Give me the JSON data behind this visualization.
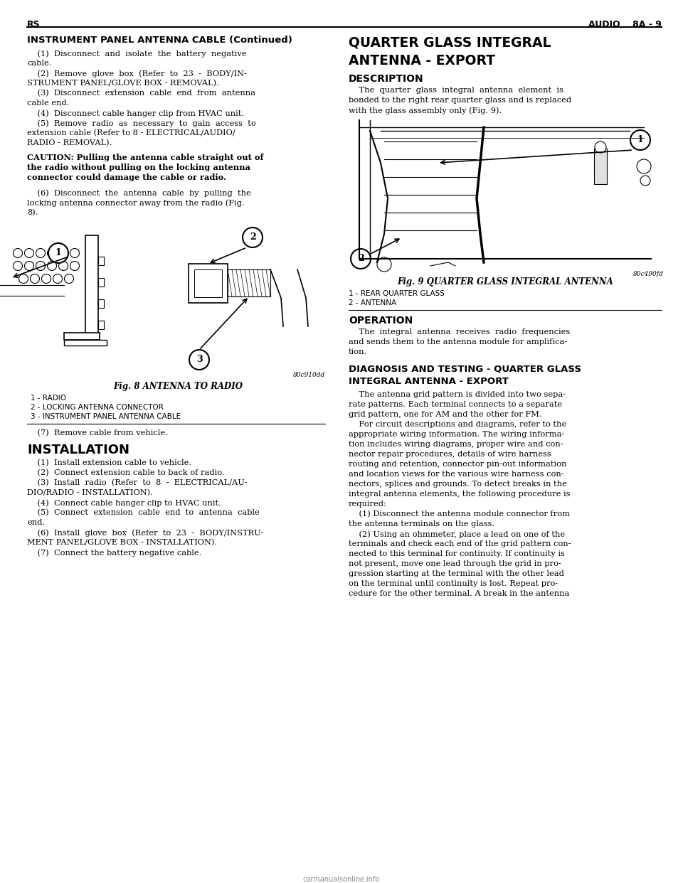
{
  "bg_color": "#ffffff",
  "page_width": 9.6,
  "page_height": 12.42,
  "dpi": 100,
  "header_left": "RS",
  "header_right": "AUDIO    8A - 9",
  "section_title_left": "INSTRUMENT PANEL ANTENNA CABLE (Continued)",
  "left_para1_lines": [
    "    (1)  Disconnect  and  isolate  the  battery  negative",
    "cable.",
    "    (2)  Remove  glove  box  (Refer  to  23  -  BODY/IN-",
    "STRUMENT PANEL/GLOVE BOX - REMOVAL).",
    "    (3)  Disconnect  extension  cable  end  from  antenna",
    "cable end.",
    "    (4)  Disconnect cable hanger clip from HVAC unit.",
    "    (5)  Remove  radio  as  necessary  to  gain  access  to",
    "extension cable (Refer to 8 - ELECTRICAL/AUDIO/",
    "RADIO - REMOVAL)."
  ],
  "caution_lines": [
    "CAUTION: Pulling the antenna cable straight out of",
    "the radio without pulling on the locking antenna",
    "connector could damage the cable or radio."
  ],
  "step6_lines": [
    "    (6)  Disconnect  the  antenna  cable  by  pulling  the",
    "locking antenna connector away from the radio (Fig.",
    "8)."
  ],
  "fig8_code": "80c910dd",
  "fig8_caption": "Fig. 8 ANTENNA TO RADIO",
  "fig8_labels": [
    "1 - RADIO",
    "2 - LOCKING ANTENNA CONNECTOR",
    "3 - INSTRUMENT PANEL ANTENNA CABLE"
  ],
  "step7_text": "    (7)  Remove cable from vehicle.",
  "install_title": "INSTALLATION",
  "install_lines": [
    "    (1)  Install extension cable to vehicle.",
    "    (2)  Connect extension cable to back of radio.",
    "    (3)  Install  radio  (Refer  to  8  -  ELECTRICAL/AU-",
    "DIO/RADIO - INSTALLATION).",
    "    (4)  Connect cable hanger clip to HVAC unit.",
    "    (5)  Connect  extension  cable  end  to  antenna  cable",
    "end.",
    "    (6)  Install  glove  box  (Refer  to  23  -  BODY/INSTRU-",
    "MENT PANEL/GLOVE BOX - INSTALLATION).",
    "    (7)  Connect the battery negative cable."
  ],
  "right_title_line1": "QUARTER GLASS INTEGRAL",
  "right_title_line2": "ANTENNA - EXPORT",
  "desc_title": "DESCRIPTION",
  "desc_lines": [
    "    The  quarter  glass  integral  antenna  element  is",
    "bonded to the right rear quarter glass and is replaced",
    "with the glass assembly only (Fig. 9)."
  ],
  "fig9_code": "80c490fd",
  "fig9_caption": "Fig. 9 QUARTER GLASS INTEGRAL ANTENNA",
  "fig9_labels": [
    "1 - REAR QUARTER GLASS",
    "2 - ANTENNA"
  ],
  "op_title": "OPERATION",
  "op_lines": [
    "    The  integral  antenna  receives  radio  frequencies",
    "and sends them to the antenna module for amplifica-",
    "tion."
  ],
  "diag_title_line1": "DIAGNOSIS AND TESTING - QUARTER GLASS",
  "diag_title_line2": "INTEGRAL ANTENNA - EXPORT",
  "diag_lines": [
    "    The antenna grid pattern is divided into two sepa-",
    "rate patterns. Each terminal connects to a separate",
    "grid pattern, one for AM and the other for FM.",
    "    For circuit descriptions and diagrams, refer to the",
    "appropriate wiring information. The wiring informa-",
    "tion includes wiring diagrams, proper wire and con-",
    "nector repair procedures, details of wire harness",
    "routing and retention, connector pin-out information",
    "and location views for the various wire harness con-",
    "nectors, splices and grounds. To detect breaks in the",
    "integral antenna elements, the following procedure is",
    "required:",
    "    (1) Disconnect the antenna module connector from",
    "the antenna terminals on the glass.",
    "    (2) Using an ohmmeter, place a lead on one of the",
    "terminals and check each end of the grid pattern con-",
    "nected to this terminal for continuity. If continuity is",
    "not present, move one lead through the grid in pro-",
    "gression starting at the terminal with the other lead",
    "on the terminal until continuity is lost. Repeat pro-",
    "cedure for the other terminal. A break in the antenna"
  ]
}
